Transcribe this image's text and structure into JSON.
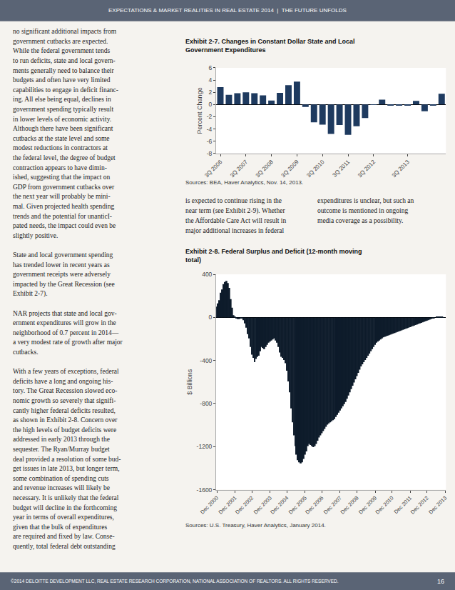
{
  "page": {
    "background": "#f5f3ef",
    "color": "#5a6475",
    "header": "EXPECTATIONS & MARKET REALITIES IN REAL ESTATE 2014  |  THE FUTURE UNFOLDS",
    "footer": "©2014 DELOITTE DEVELOPMENT LLC, REAL ESTATE RESEARCH CORPORATION, NATIONAL ASSOCIATION OF REALTORS. ALL RIGHTS RESERVED.",
    "page_number": "16",
    "columns": [
      [
        [
          "no significant additional impacts from",
          "government cutbacks are expected.",
          "While the federal government tends",
          "to run deficits, state and local govern-",
          "ments generally need to balance their",
          "budgets and often have very limited",
          "capabilities to engage in deficit financ-",
          "ing. All else being equal, declines in",
          "government spending typically result",
          "in lower levels of economic activity.",
          "Although there have been significant",
          "cutbacks at the state level and some",
          "modest reductions in contractors at",
          "the federal level, the degree of budget",
          "contraction appears to have dimin-",
          "ished, suggesting that the impact on",
          "GDP from government cutbacks over",
          "the next year will probably be mini-",
          "mal. Given projected health spending",
          "trends and the potential for unanticI-",
          "pated needs, the impact could even be",
          "slightly positive."
        ],
        [
          "State and local government spending",
          "has trended lower in recent years as",
          "government receipts were adversely",
          "impacted by the Great Recession (see",
          "Exhibit 2-7)."
        ],
        [
          "NAR projects that state and local gov-",
          "ernment expenditures will grow in the",
          "neighborhood of 0.7 percent in 2014—",
          "a very modest rate of growth after major",
          "cutbacks."
        ],
        [
          "With a few years of exceptions, federal",
          "deficits have a long and ongoing his-",
          "tory. The Great Recession slowed eco-",
          "nomic growth so severely that signifi-",
          "cantly higher federal deficits resulted,",
          "as shown in Exhibit 2-8. Concern over",
          "the high levels of budget deficits were",
          "addressed in early 2013 through the",
          "sequester. The Ryan/Murray budget",
          "deal provided a resolution of some bud-",
          "get issues in late 2013, but longer term,",
          "some combination of spending cuts",
          "and revenue increases will likely be",
          "necessary. It is unlikely that the federal",
          "budget will decline in the forthcoming",
          "year in terms of overall expenditures,",
          "given that the bulk of expenditures",
          "are required and fixed by law. Conse-",
          "quently, total federal debt outstanding"
        ]
      ],
      [
        [
          "is expected to continue rising in the",
          "near term (see Exhibit 2-9). Whether",
          "the Affordable Care Act will result in",
          "major additional increases in federal"
        ]
      ],
      [
        [
          "expenditures is unclear, but such an",
          "outcome is mentioned in ongoing",
          "media coverage as a possibility."
        ]
      ]
    ]
  },
  "chart_data": [
    {
      "type": "bar",
      "title": "Exhibit 2-7. Changes in Constant Dollar State and Local Government Expenditures",
      "ylabel": "Percent Change",
      "categories": [
        "3Q 2006",
        null,
        null,
        "3Q 2007",
        null,
        null,
        "3Q 2008",
        null,
        null,
        "3Q 2009",
        null,
        null,
        "3Q 2010",
        null,
        null,
        "3Q 2011",
        null,
        null,
        "3Q 2012",
        null,
        null,
        null,
        "3Q 2013",
        null,
        null,
        null,
        null
      ],
      "values": [
        2.85,
        1.6,
        1.85,
        2.0,
        1.85,
        1.5,
        0.65,
        1.9,
        3.15,
        3.75,
        -0.4,
        -2.9,
        -3.3,
        -4.8,
        -3.35,
        -4.95,
        -3.55,
        -2.2,
        -0.05,
        0.8,
        -0.2,
        -0.1,
        -0.2,
        0.6,
        -1.1,
        -0.2,
        1.75
      ],
      "color": "#1e3a5f",
      "ylim": [
        -8,
        6
      ],
      "yticks": [
        -8,
        -6,
        -4,
        -2,
        0,
        2,
        4,
        6
      ],
      "grid": false,
      "annotations": [
        "Sources: BEA, Haver Analytics, Nov. 14, 2013."
      ]
    },
    {
      "type": "bar",
      "title": "Exhibit 2-8. Federal Surplus and Deficit (12-month moving total)",
      "ylabel": "$ Billions",
      "categories": [
        "Dec 2000",
        null,
        null,
        null,
        null,
        null,
        null,
        null,
        null,
        null,
        null,
        null,
        null,
        "Dec 2001",
        null,
        null,
        null,
        null,
        null,
        null,
        null,
        null,
        null,
        null,
        null,
        "Dec 2002",
        null,
        null,
        null,
        null,
        null,
        null,
        null,
        null,
        null,
        null,
        null,
        null,
        "Dec 2003",
        null,
        null,
        null,
        null,
        null,
        null,
        null,
        null,
        null,
        null,
        null,
        "Dec 2004",
        null,
        null,
        null,
        null,
        null,
        null,
        null,
        null,
        null,
        null,
        null,
        null,
        "Dec 2005",
        null,
        null,
        null,
        null,
        null,
        null,
        null,
        null,
        null,
        null,
        null,
        "Dec 2006",
        null,
        null,
        null,
        null,
        null,
        null,
        null,
        null,
        null,
        null,
        null,
        null,
        "Dec 2007",
        null,
        null,
        null,
        null,
        null,
        null,
        null,
        null,
        null,
        null,
        null,
        "Dec 2008",
        null,
        null,
        null,
        null,
        null,
        null,
        null,
        null,
        null,
        null,
        null,
        null,
        "Dec 2009",
        null,
        null,
        null,
        null,
        null,
        null,
        null,
        null,
        null,
        null,
        null,
        "Dec 2010",
        null,
        null,
        null,
        null,
        null,
        null,
        null,
        null,
        null,
        null,
        null,
        null,
        "Dec 2011",
        null,
        null,
        null,
        null,
        null,
        null,
        null,
        null,
        null,
        null,
        null,
        "Dec 2012",
        null,
        null,
        null,
        null,
        null,
        null,
        null,
        null,
        null,
        null,
        null,
        null,
        "Dec 2013"
      ],
      "values": [
        100,
        130,
        160,
        230,
        260,
        310,
        330,
        340,
        320,
        275,
        170,
        90,
        20,
        5,
        -5,
        -15,
        -15,
        -10,
        -5,
        -25,
        -55,
        -95,
        -155,
        -195,
        -275,
        -345,
        -375,
        -415,
        -385,
        -365,
        -355,
        -315,
        -275,
        -285,
        -295,
        -275,
        -255,
        -235,
        -225,
        -215,
        -205,
        -195,
        -215,
        -235,
        -275,
        -325,
        -365,
        -375,
        -395,
        -425,
        -495,
        -595,
        -695,
        -845,
        -975,
        -1095,
        -1195,
        -1275,
        -1325,
        -1345,
        -1355,
        -1345,
        -1315,
        -1275,
        -1245,
        -1195,
        -1175,
        -1185,
        -1195,
        -1205,
        -1195,
        -1175,
        -1145,
        -1115,
        -1095,
        -1075,
        -1055,
        -1035,
        -1015,
        -995,
        -985,
        -975,
        -965,
        -955,
        -945,
        -925,
        -905,
        -885,
        -865,
        -845,
        -825,
        -805,
        -785,
        -755,
        -725,
        -695,
        -665,
        -635,
        -605,
        -575,
        -545,
        -515,
        -485,
        -455,
        -435,
        -415,
        -395,
        -375,
        -355,
        -335,
        -315,
        -295,
        -275,
        -255,
        -235,
        -225,
        -215,
        -205,
        -195,
        -185,
        -180,
        -175,
        -170,
        -165,
        -160,
        -155,
        -150,
        -145,
        -140,
        -135,
        -130,
        -125,
        -120,
        -115,
        -110,
        -105,
        -100,
        -95,
        -90,
        -85,
        -80,
        -75,
        -70,
        -65,
        -60,
        -55,
        -50,
        -45,
        -40,
        -35,
        -30,
        -25,
        -20,
        -15,
        -10,
        -5,
        0,
        5,
        10,
        8,
        6,
        4,
        2,
        0
      ],
      "color": "#0d1b2a",
      "ylim": [
        -1600,
        400
      ],
      "yticks": [
        -1600,
        -1200,
        -800,
        -400,
        0,
        400
      ],
      "grid": false,
      "annotations": [
        "Sources: U.S. Treasury, Haver Analytics, January 2014."
      ]
    }
  ]
}
